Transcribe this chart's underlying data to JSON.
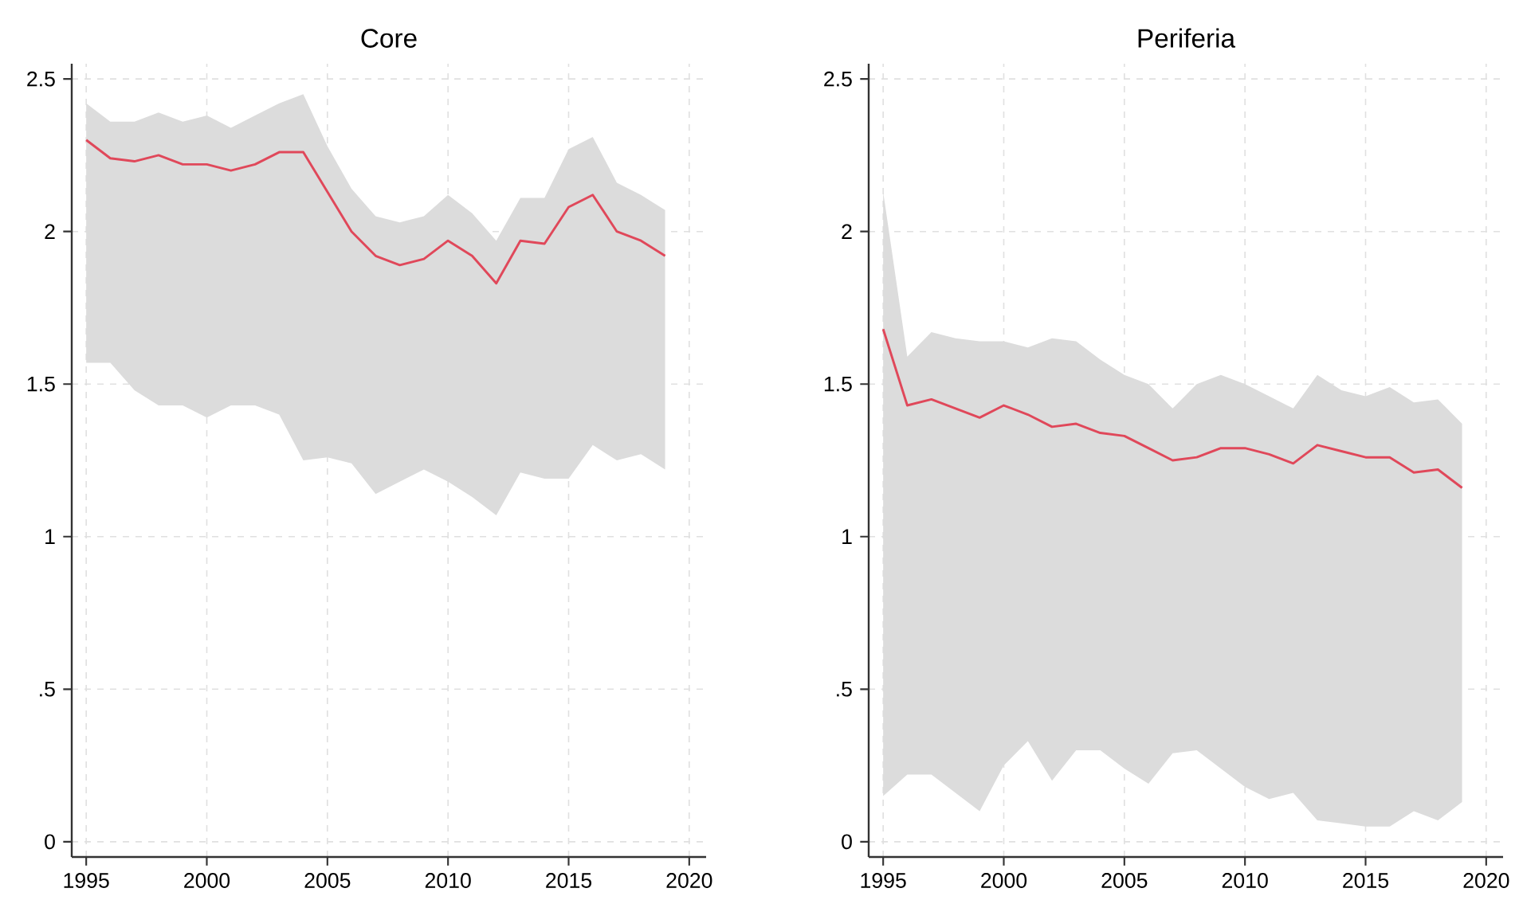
{
  "chart_data": [
    {
      "type": "line",
      "title": "Core",
      "x": [
        1995,
        1996,
        1997,
        1998,
        1999,
        2000,
        2001,
        2002,
        2003,
        2004,
        2005,
        2006,
        2007,
        2008,
        2009,
        2010,
        2011,
        2012,
        2013,
        2014,
        2015,
        2016,
        2017,
        2018,
        2019
      ],
      "series": [
        {
          "color": "#e0485a",
          "values": [
            2.3,
            2.24,
            2.23,
            2.25,
            2.22,
            2.22,
            2.2,
            2.22,
            2.26,
            2.26,
            2.13,
            2.0,
            1.92,
            1.89,
            1.91,
            1.97,
            1.92,
            1.83,
            1.97,
            1.96,
            2.08,
            2.12,
            2.0,
            1.97,
            1.92
          ],
          "upper": [
            2.42,
            2.36,
            2.36,
            2.39,
            2.36,
            2.38,
            2.34,
            2.38,
            2.42,
            2.45,
            2.28,
            2.14,
            2.05,
            2.03,
            2.05,
            2.12,
            2.06,
            1.97,
            2.11,
            2.11,
            2.27,
            2.31,
            2.16,
            2.12,
            2.07
          ],
          "lower": [
            1.57,
            1.57,
            1.48,
            1.43,
            1.43,
            1.39,
            1.43,
            1.43,
            1.4,
            1.25,
            1.26,
            1.24,
            1.14,
            1.18,
            1.22,
            1.18,
            1.13,
            1.07,
            1.21,
            1.19,
            1.19,
            1.3,
            1.25,
            1.27,
            1.22
          ]
        }
      ],
      "xlim": [
        1994.4,
        2020.7
      ],
      "ylim": [
        -0.05,
        2.55
      ],
      "xticks": [
        1995,
        2000,
        2005,
        2010,
        2015,
        2020
      ],
      "yticks": [
        0,
        {
          "value": 0.5,
          "label": ".5"
        },
        1,
        1.5,
        2,
        2.5
      ],
      "grid": true,
      "marker": "none",
      "line_style": "solid"
    },
    {
      "type": "line",
      "title": "Periferia",
      "x": [
        1995,
        1996,
        1997,
        1998,
        1999,
        2000,
        2001,
        2002,
        2003,
        2004,
        2005,
        2006,
        2007,
        2008,
        2009,
        2010,
        2011,
        2012,
        2013,
        2014,
        2015,
        2016,
        2017,
        2018,
        2019
      ],
      "series": [
        {
          "color": "#e0485a",
          "values": [
            1.68,
            1.43,
            1.45,
            1.42,
            1.39,
            1.43,
            1.4,
            1.36,
            1.37,
            1.34,
            1.33,
            1.29,
            1.25,
            1.26,
            1.29,
            1.29,
            1.27,
            1.24,
            1.3,
            1.28,
            1.26,
            1.26,
            1.21,
            1.22,
            1.16
          ],
          "upper": [
            2.13,
            1.59,
            1.67,
            1.65,
            1.64,
            1.64,
            1.62,
            1.65,
            1.64,
            1.58,
            1.53,
            1.5,
            1.42,
            1.5,
            1.53,
            1.5,
            1.46,
            1.42,
            1.53,
            1.48,
            1.46,
            1.49,
            1.44,
            1.45,
            1.37
          ],
          "lower": [
            0.15,
            0.22,
            0.22,
            0.16,
            0.1,
            0.25,
            0.33,
            0.2,
            0.3,
            0.3,
            0.24,
            0.19,
            0.29,
            0.3,
            0.24,
            0.18,
            0.14,
            0.16,
            0.07,
            0.06,
            0.05,
            0.05,
            0.1,
            0.07,
            0.13
          ]
        }
      ],
      "xlim": [
        1994.4,
        2020.7
      ],
      "ylim": [
        -0.05,
        2.55
      ],
      "xticks": [
        1995,
        2000,
        2005,
        2010,
        2015,
        2020
      ],
      "yticks": [
        0,
        {
          "value": 0.5,
          "label": ".5"
        },
        1,
        1.5,
        2,
        2.5
      ],
      "grid": true,
      "marker": "none",
      "line_style": "solid"
    }
  ]
}
